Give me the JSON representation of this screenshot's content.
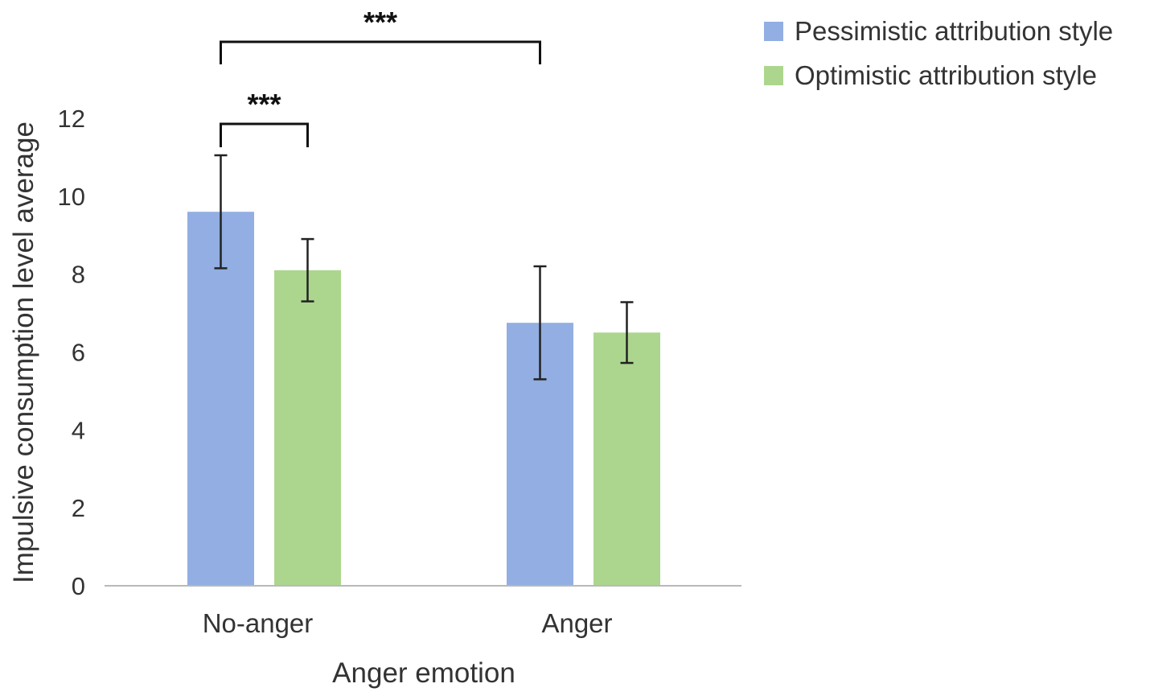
{
  "chart_data": {
    "type": "bar",
    "xlabel": "Anger emotion",
    "ylabel": "Impulsive consumption level average",
    "ylim": [
      0,
      12
    ],
    "yticks": [
      0,
      2,
      4,
      6,
      8,
      10,
      12
    ],
    "categories": [
      "No-anger",
      "Anger"
    ],
    "series": [
      {
        "name": "Pessimistic attribution style",
        "color": "#92aee2",
        "values": [
          9.6,
          6.75
        ],
        "error": [
          1.45,
          1.45
        ]
      },
      {
        "name": "Optimistic attribution style",
        "color": "#acd68e",
        "values": [
          8.1,
          6.5
        ],
        "error": [
          0.8,
          0.78
        ]
      }
    ],
    "grid": false,
    "legend_position": "top-right",
    "significance": [
      {
        "label": "***",
        "from": {
          "category": 0,
          "series": 0
        },
        "to": {
          "category": 1,
          "series": 0
        }
      },
      {
        "label": "***",
        "from": {
          "category": 0,
          "series": 0
        },
        "to": {
          "category": 0,
          "series": 1
        }
      }
    ]
  }
}
